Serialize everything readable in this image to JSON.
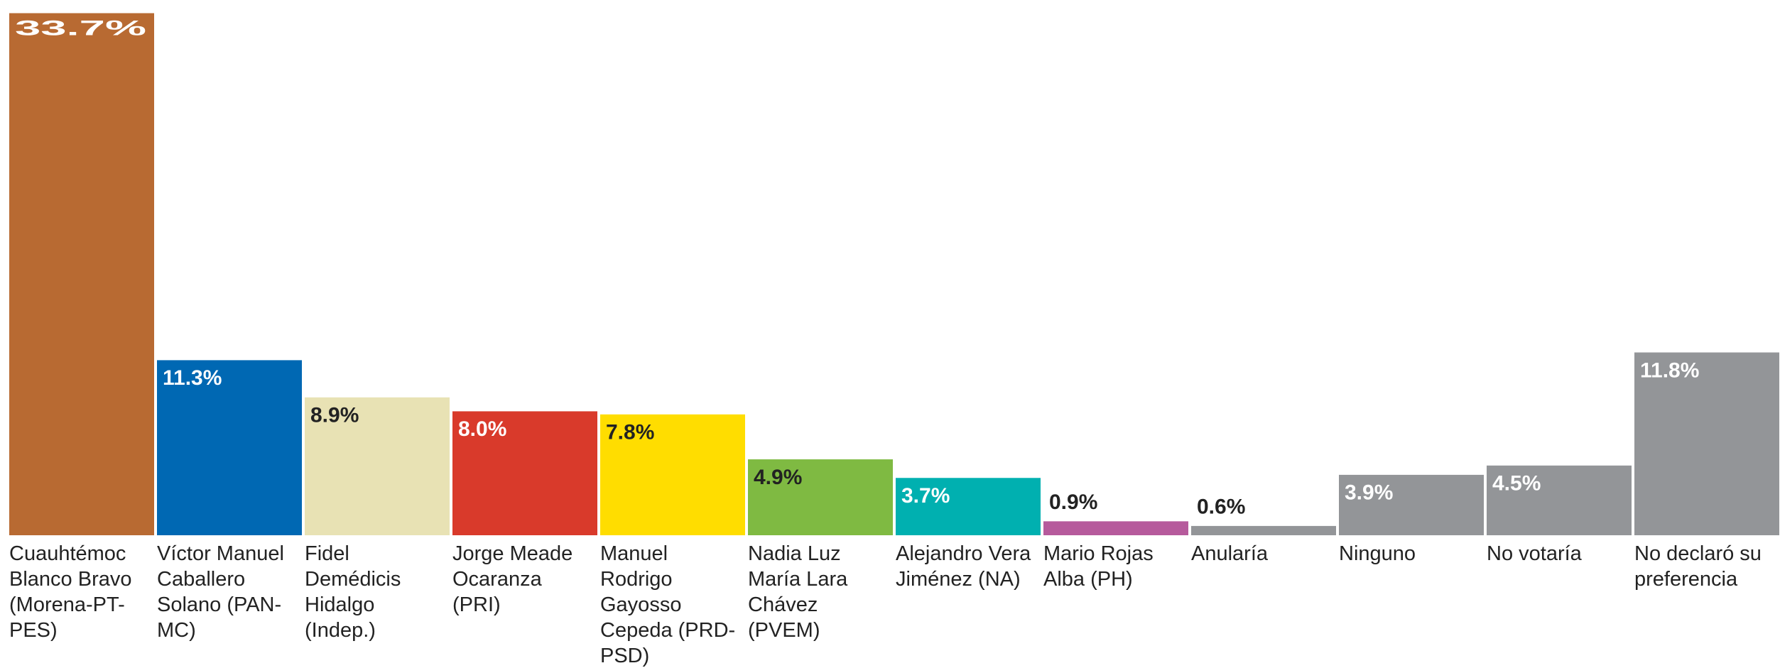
{
  "chart_data": {
    "type": "bar",
    "categories": [
      "Cuauhtémoc Blanco Bravo (Morena-PT-PES)",
      "Víctor Manuel Caballero Solano (PAN-MC)",
      "Fidel Demédicis Hidalgo (Indep.)",
      "Jorge Meade Ocaranza (PRI)",
      "Manuel Rodrigo Gayosso Cepeda (PRD-PSD)",
      "Nadia Luz María Lara Chávez (PVEM)",
      "Alejandro Vera Jiménez (NA)",
      "Mario Rojas Alba (PH)",
      "Anularía",
      "Ninguno",
      "No votaría",
      "No declaró su preferencia"
    ],
    "values": [
      33.7,
      11.3,
      8.9,
      8.0,
      7.8,
      4.9,
      3.7,
      0.9,
      0.6,
      3.9,
      4.5,
      11.8
    ],
    "value_labels": [
      "33.7%",
      "11.3%",
      "8.9%",
      "8.0%",
      "7.8%",
      "4.9%",
      "3.7%",
      "0.9%",
      "0.6%",
      "3.9%",
      "4.5%",
      "11.8%"
    ],
    "colors": [
      "#b86a32",
      "#0068b3",
      "#e8e2b4",
      "#d93a2b",
      "#ffdd00",
      "#7fba42",
      "#00b0b0",
      "#b65a9c",
      "#939598",
      "#939598",
      "#939598",
      "#939598"
    ],
    "ylim": [
      0,
      34
    ]
  }
}
